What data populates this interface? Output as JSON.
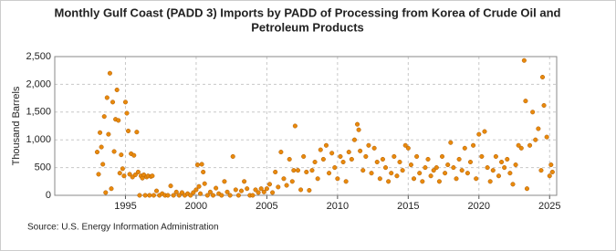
{
  "chart_data": {
    "type": "scatter",
    "title": [
      "Monthly Gulf Coast (PADD 3) Imports by PADD of Processing from Korea of Crude Oil and",
      "Petroleum Products"
    ],
    "y_label": "Thousand Barrels",
    "source": "Source: U.S. Energy Information Administration",
    "color": "#e8890c",
    "grid": true,
    "xlim": [
      1990,
      2025.5
    ],
    "ylim": [
      0,
      2500
    ],
    "xticks": [
      1995,
      2000,
      2005,
      2010,
      2015,
      2020,
      2025
    ],
    "yticks": [
      0,
      500,
      {
        "value": 1000,
        "label": "1,000"
      },
      {
        "value": 1500,
        "label": "1,500"
      },
      {
        "value": 2000,
        "label": "2,000"
      },
      {
        "value": 2500,
        "label": "2,500"
      }
    ],
    "x": [
      1993.0,
      1993.1,
      1993.2,
      1993.3,
      1993.4,
      1993.5,
      1993.6,
      1993.7,
      1993.8,
      1993.9,
      1994.0,
      1994.1,
      1994.2,
      1994.3,
      1994.4,
      1994.5,
      1994.6,
      1994.7,
      1994.8,
      1994.9,
      1995.0,
      1995.1,
      1995.2,
      1995.3,
      1995.4,
      1995.5,
      1995.6,
      1995.7,
      1995.8,
      1995.9,
      1996.0,
      1996.1,
      1996.2,
      1996.3,
      1996.4,
      1996.5,
      1996.6,
      1996.7,
      1996.8,
      1996.9,
      1997.0,
      1997.2,
      1997.4,
      1997.6,
      1997.8,
      1998.0,
      1998.2,
      1998.4,
      1998.6,
      1998.8,
      1999.0,
      1999.2,
      1999.4,
      1999.6,
      1999.8,
      2000.0,
      2000.1,
      2000.2,
      2000.3,
      2000.4,
      2000.5,
      2000.6,
      2000.8,
      2001.0,
      2001.2,
      2001.4,
      2001.6,
      2001.8,
      2002.0,
      2002.2,
      2002.4,
      2002.6,
      2002.8,
      2003.0,
      2003.2,
      2003.4,
      2003.6,
      2003.8,
      2004.0,
      2004.2,
      2004.4,
      2004.6,
      2004.8,
      2005.0,
      2005.2,
      2005.4,
      2005.6,
      2005.8,
      2006.0,
      2006.2,
      2006.4,
      2006.6,
      2006.8,
      2006.9,
      2007.0,
      2007.2,
      2007.4,
      2007.6,
      2007.8,
      2008.0,
      2008.2,
      2008.4,
      2008.6,
      2008.8,
      2009.0,
      2009.2,
      2009.4,
      2009.6,
      2009.8,
      2010.0,
      2010.2,
      2010.4,
      2010.6,
      2010.8,
      2011.0,
      2011.2,
      2011.4,
      2011.5,
      2011.6,
      2011.8,
      2012.0,
      2012.2,
      2012.4,
      2012.6,
      2012.8,
      2013.0,
      2013.2,
      2013.4,
      2013.6,
      2013.8,
      2014.0,
      2014.2,
      2014.4,
      2014.6,
      2014.8,
      2015.0,
      2015.2,
      2015.4,
      2015.6,
      2015.8,
      2016.0,
      2016.2,
      2016.4,
      2016.6,
      2016.8,
      2017.0,
      2017.2,
      2017.4,
      2017.6,
      2017.8,
      2018.0,
      2018.2,
      2018.4,
      2018.6,
      2018.8,
      2019.0,
      2019.2,
      2019.4,
      2019.6,
      2019.8,
      2020.0,
      2020.2,
      2020.4,
      2020.6,
      2020.8,
      2021.0,
      2021.2,
      2021.4,
      2021.6,
      2021.8,
      2022.0,
      2022.2,
      2022.4,
      2022.6,
      2022.8,
      2023.0,
      2023.2,
      2023.3,
      2023.4,
      2023.6,
      2023.8,
      2024.0,
      2024.2,
      2024.4,
      2024.5,
      2024.6,
      2024.8,
      2025.0,
      2025.1,
      2025.2
    ],
    "values": [
      780,
      380,
      1130,
      870,
      560,
      1420,
      50,
      1760,
      1100,
      2200,
      120,
      1680,
      790,
      1370,
      1900,
      1350,
      400,
      730,
      480,
      350,
      1680,
      1480,
      1160,
      380,
      750,
      330,
      720,
      370,
      1140,
      420,
      0,
      350,
      310,
      370,
      0,
      330,
      350,
      0,
      340,
      350,
      0,
      80,
      0,
      30,
      0,
      0,
      170,
      0,
      60,
      0,
      50,
      0,
      30,
      0,
      50,
      100,
      550,
      160,
      30,
      560,
      420,
      210,
      0,
      60,
      0,
      130,
      30,
      0,
      250,
      60,
      0,
      700,
      100,
      0,
      80,
      250,
      120,
      0,
      0,
      100,
      50,
      120,
      60,
      120,
      200,
      50,
      420,
      150,
      780,
      300,
      180,
      650,
      250,
      450,
      1250,
      450,
      100,
      700,
      420,
      90,
      450,
      600,
      300,
      820,
      650,
      900,
      400,
      760,
      500,
      300,
      700,
      600,
      250,
      780,
      650,
      1000,
      1280,
      1180,
      800,
      450,
      700,
      900,
      400,
      850,
      600,
      300,
      650,
      500,
      250,
      400,
      700,
      350,
      600,
      450,
      900,
      850,
      550,
      300,
      700,
      400,
      250,
      500,
      650,
      350,
      450,
      500,
      250,
      700,
      400,
      550,
      950,
      500,
      300,
      650,
      450,
      850,
      400,
      600,
      900,
      300,
      1100,
      700,
      1150,
      500,
      250,
      450,
      700,
      350,
      600,
      500,
      650,
      400,
      200,
      550,
      900,
      850,
      2430,
      1700,
      120,
      900,
      1500,
      1000,
      1200,
      450,
      2130,
      1620,
      1050,
      350,
      550,
      420
    ]
  }
}
